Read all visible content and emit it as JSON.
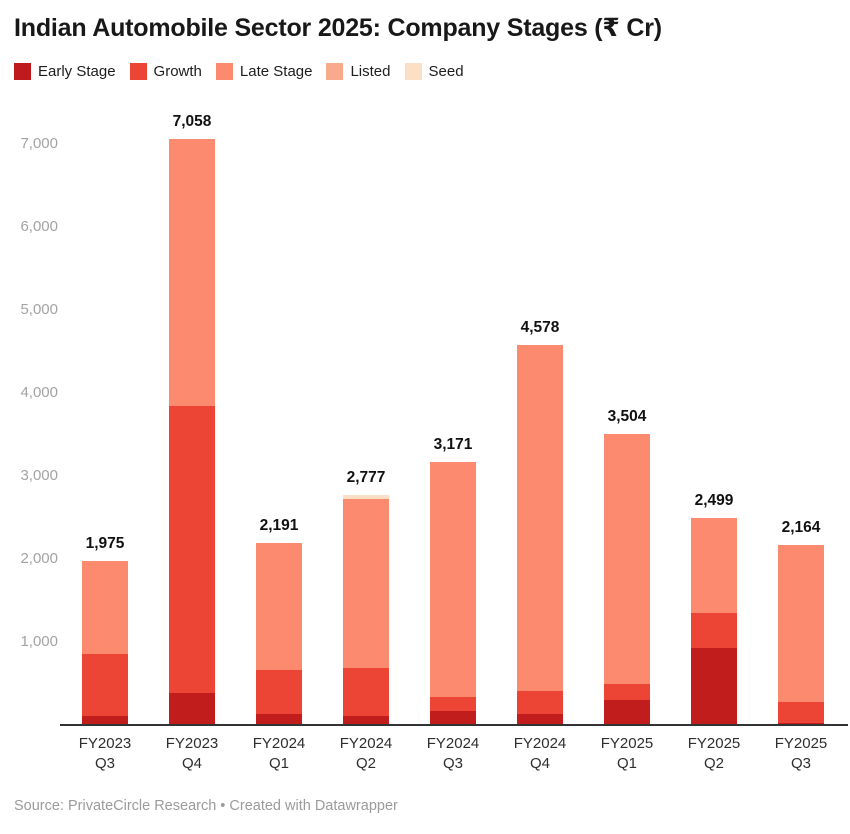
{
  "title": "Indian Automobile Sector 2025: Company Stages (₹ Cr)",
  "footer": "Source: PrivateCircle Research • Created with Datawrapper",
  "legend": [
    {
      "label": "Early Stage",
      "color": "#bf1a1d"
    },
    {
      "label": "Growth",
      "color": "#ec4435"
    },
    {
      "label": "Late Stage",
      "color": "#fc8a6e"
    },
    {
      "label": "Listed",
      "color": "#f9a98c"
    },
    {
      "label": "Seed",
      "color": "#fcdfc4"
    }
  ],
  "chart_data": {
    "type": "bar",
    "stacked": true,
    "title": "Indian Automobile Sector 2025: Company Stages (₹ Cr)",
    "xlabel": "",
    "ylabel": "",
    "grid": false,
    "legend_position": "top",
    "ylim": [
      0,
      7250
    ],
    "categories": [
      "FY2023 Q3",
      "FY2023 Q4",
      "FY2024 Q1",
      "FY2024 Q2",
      "FY2024 Q3",
      "FY2024 Q4",
      "FY2025 Q1",
      "FY2025 Q2",
      "FY2025 Q3"
    ],
    "series": [
      {
        "name": "Early Stage",
        "color": "#c11d1d",
        "values": [
          105,
          380,
          130,
          105,
          165,
          130,
          300,
          930,
          20
        ]
      },
      {
        "name": "Growth",
        "color": "#ec4435",
        "values": [
          750,
          3465,
          535,
          580,
          175,
          285,
          190,
          415,
          255
        ]
      },
      {
        "name": "Late Stage",
        "color": "#fc8a6e",
        "values": [
          1120,
          3213,
          1526,
          2042,
          2831,
          4163,
          3014,
          1154,
          1889
        ]
      },
      {
        "name": "Listed",
        "color": "#f9a98c",
        "values": [
          0,
          0,
          0,
          0,
          0,
          0,
          0,
          0,
          0
        ]
      },
      {
        "name": "Seed",
        "color": "#fcdfc4",
        "values": [
          0,
          0,
          0,
          50,
          0,
          0,
          0,
          0,
          0
        ]
      }
    ],
    "totals": [
      1975,
      7058,
      2191,
      2777,
      3171,
      4578,
      3504,
      2499,
      2164
    ],
    "total_labels": [
      "1,975",
      "7,058",
      "2,191",
      "2,777",
      "3,171",
      "4,578",
      "3,504",
      "2,499",
      "2,164"
    ],
    "y_ticks": [
      {
        "value": 1000,
        "label": "1,000"
      },
      {
        "value": 2000,
        "label": "2,000"
      },
      {
        "value": 3000,
        "label": "3,000"
      },
      {
        "value": 4000,
        "label": "4,000"
      },
      {
        "value": 5000,
        "label": "5,000"
      },
      {
        "value": 6000,
        "label": "6,000"
      },
      {
        "value": 7000,
        "label": "7,000"
      }
    ]
  }
}
